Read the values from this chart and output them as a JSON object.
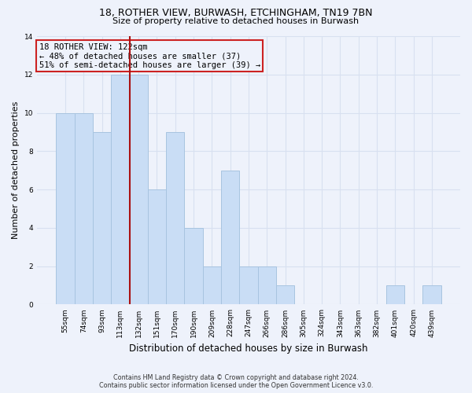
{
  "title1": "18, ROTHER VIEW, BURWASH, ETCHINGHAM, TN19 7BN",
  "title2": "Size of property relative to detached houses in Burwash",
  "xlabel": "Distribution of detached houses by size in Burwash",
  "ylabel": "Number of detached properties",
  "categories": [
    "55sqm",
    "74sqm",
    "93sqm",
    "113sqm",
    "132sqm",
    "151sqm",
    "170sqm",
    "190sqm",
    "209sqm",
    "228sqm",
    "247sqm",
    "266sqm",
    "286sqm",
    "305sqm",
    "324sqm",
    "343sqm",
    "363sqm",
    "382sqm",
    "401sqm",
    "420sqm",
    "439sqm"
  ],
  "values": [
    10,
    10,
    9,
    12,
    12,
    6,
    9,
    4,
    2,
    7,
    2,
    2,
    1,
    0,
    0,
    0,
    0,
    0,
    1,
    0,
    1
  ],
  "bar_color": "#c9ddf5",
  "bar_edge_color": "#a8c4e0",
  "property_line_x": 3.5,
  "property_line_label": "18 ROTHER VIEW: 122sqm",
  "annotation_line1": "← 48% of detached houses are smaller (37)",
  "annotation_line2": "51% of semi-detached houses are larger (39) →",
  "vline_color": "#aa1111",
  "box_edge_color": "#cc2222",
  "ylim": [
    0,
    14
  ],
  "yticks": [
    0,
    2,
    4,
    6,
    8,
    10,
    12,
    14
  ],
  "footnote1": "Contains HM Land Registry data © Crown copyright and database right 2024.",
  "footnote2": "Contains public sector information licensed under the Open Government Licence v3.0.",
  "background_color": "#eef2fb",
  "grid_color": "#d8e0f0"
}
